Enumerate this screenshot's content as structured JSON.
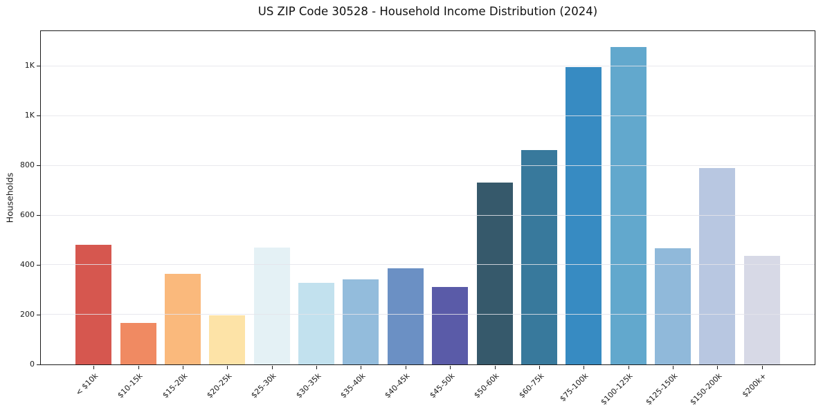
{
  "header": {
    "title": "US ZIP Code 30528 - Household Income Distribution (2024)"
  },
  "chart_data": {
    "type": "bar",
    "title": "US ZIP Code 30528 - Household Income Distribution (2024)",
    "xlabel": "",
    "ylabel": "Households",
    "ylim": [
      0,
      1343
    ],
    "grid": "horizontal-light-over-bars",
    "legend": "none",
    "frame": "full-box",
    "categories": [
      "< $10k",
      "$10-15k",
      "$15-20k",
      "$20-25k",
      "$25-30k",
      "$30-35k",
      "$35-40k",
      "$40-45k",
      "$45-50k",
      "$50-60k",
      "$60-75k",
      "$75-100k",
      "$100-125k",
      "$125-150k",
      "$150-200k",
      "$200k+"
    ],
    "values": [
      483,
      167,
      366,
      198,
      472,
      329,
      343,
      387,
      313,
      734,
      863,
      1197,
      1279,
      467,
      790,
      437
    ],
    "bar_colors": [
      "#d6574f",
      "#f08a62",
      "#fab97c",
      "#fde3a7",
      "#e4f1f5",
      "#c2e1ee",
      "#93bcdc",
      "#6b90c4",
      "#5a5ba8",
      "#36596b",
      "#38799c",
      "#378bc2",
      "#62a8cd",
      "#90b9da",
      "#b8c7e1",
      "#d7d9e6"
    ],
    "yticks": [
      {
        "value": 0,
        "label": "0"
      },
      {
        "value": 200,
        "label": "200"
      },
      {
        "value": 400,
        "label": "400"
      },
      {
        "value": 600,
        "label": "600"
      },
      {
        "value": 800,
        "label": "800"
      },
      {
        "value": 1000,
        "label": "1K"
      },
      {
        "value": 1200,
        "label": "1K"
      }
    ]
  },
  "colors": {
    "background": "#ffffff",
    "spine": "#1a1a1a",
    "grid": "#e4e4ea",
    "text": "#1a1a1a",
    "title": "#111111"
  }
}
